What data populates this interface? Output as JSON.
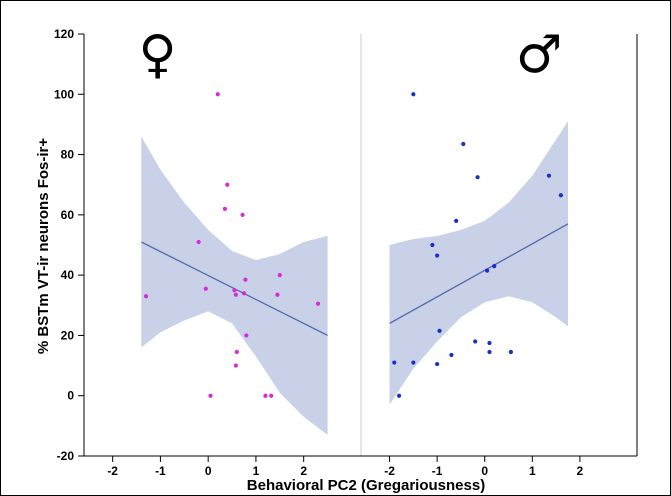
{
  "chart_data": {
    "type": "scatter",
    "ylabel": "% BSTm VT-ir neurons Fos-ir+",
    "xlabel": "Behavioral PC2 (Gregariousness)",
    "ylim": [
      -20,
      120
    ],
    "y_ticks": [
      "-20",
      "0",
      "20",
      "40",
      "60",
      "80",
      "100",
      "120"
    ],
    "grid": false,
    "colors": {
      "band": "#c9d1e8",
      "line": "#5a6fb0",
      "female": "#d62bd6",
      "male": "#1a2fc7",
      "divider": "#cccccc"
    },
    "panels": [
      {
        "symbol": "♀",
        "symbol_name": "female-symbol",
        "xlim": [
          -2.6,
          3.2
        ],
        "x_ticks": [
          "-2",
          "-1",
          "0",
          "1",
          "2"
        ],
        "x_tick_values": [
          -2,
          -1,
          0,
          1,
          2
        ],
        "points": [
          {
            "x": -1.3,
            "y": 33
          },
          {
            "x": -0.2,
            "y": 51
          },
          {
            "x": -0.05,
            "y": 35.5
          },
          {
            "x": 0.05,
            "y": 0
          },
          {
            "x": 0.2,
            "y": 100
          },
          {
            "x": 0.35,
            "y": 62
          },
          {
            "x": 0.4,
            "y": 70
          },
          {
            "x": 0.55,
            "y": 35
          },
          {
            "x": 0.58,
            "y": 33.5
          },
          {
            "x": 0.6,
            "y": 14.5
          },
          {
            "x": 0.58,
            "y": 10
          },
          {
            "x": 0.72,
            "y": 60
          },
          {
            "x": 0.75,
            "y": 34
          },
          {
            "x": 0.78,
            "y": 38.5
          },
          {
            "x": 0.8,
            "y": 20
          },
          {
            "x": 1.2,
            "y": 0
          },
          {
            "x": 1.32,
            "y": 0
          },
          {
            "x": 1.45,
            "y": 33.5
          },
          {
            "x": 1.5,
            "y": 40
          },
          {
            "x": 2.3,
            "y": 30.5
          }
        ],
        "fit": {
          "x0": -1.4,
          "y0": 51,
          "x1": 2.5,
          "y1": 20
        },
        "band": {
          "x": [
            -1.4,
            -1.0,
            -0.5,
            0.0,
            0.5,
            1.0,
            1.5,
            2.0,
            2.5
          ],
          "upper": [
            86,
            75,
            64,
            55,
            48,
            45,
            47,
            51,
            53
          ],
          "lower": [
            16,
            21,
            25,
            28,
            24,
            13,
            1,
            -7,
            -13
          ]
        }
      },
      {
        "symbol": "♂",
        "symbol_name": "male-symbol",
        "xlim": [
          -2.6,
          3.2
        ],
        "x_ticks": [
          "-2",
          "-1",
          "0",
          "1",
          "2"
        ],
        "x_tick_values": [
          -2,
          -1,
          0,
          1,
          2
        ],
        "points": [
          {
            "x": -1.9,
            "y": 11
          },
          {
            "x": -1.8,
            "y": 0
          },
          {
            "x": -1.5,
            "y": 100
          },
          {
            "x": -1.5,
            "y": 11
          },
          {
            "x": -1.1,
            "y": 50
          },
          {
            "x": -1.0,
            "y": 46.5
          },
          {
            "x": -1.0,
            "y": 10.5
          },
          {
            "x": -0.95,
            "y": 21.5
          },
          {
            "x": -0.7,
            "y": 13.5
          },
          {
            "x": -0.6,
            "y": 58
          },
          {
            "x": -0.45,
            "y": 83.5
          },
          {
            "x": -0.2,
            "y": 18
          },
          {
            "x": -0.15,
            "y": 72.5
          },
          {
            "x": 0.05,
            "y": 41.5
          },
          {
            "x": 0.1,
            "y": 17.5
          },
          {
            "x": 0.1,
            "y": 14.5
          },
          {
            "x": 0.2,
            "y": 43
          },
          {
            "x": 0.55,
            "y": 14.5
          },
          {
            "x": 1.35,
            "y": 73
          },
          {
            "x": 1.6,
            "y": 66.5
          }
        ],
        "fit": {
          "x0": -2.0,
          "y0": 24,
          "x1": 1.75,
          "y1": 57
        },
        "band": {
          "x": [
            -2.0,
            -1.5,
            -1.0,
            -0.5,
            0.0,
            0.5,
            1.0,
            1.5,
            1.75
          ],
          "upper": [
            50,
            52,
            53,
            55,
            58,
            64,
            73,
            85,
            91
          ],
          "lower": [
            -3,
            9,
            18,
            26,
            31,
            33,
            31,
            26,
            23
          ]
        }
      }
    ]
  }
}
